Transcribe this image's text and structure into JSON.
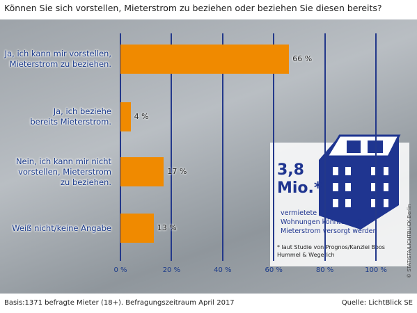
{
  "chart_data": {
    "type": "bar",
    "orientation": "horizontal",
    "title": "Können Sie sich vorstellen, Mieterstrom zu beziehen oder beziehen Sie diesen bereits?",
    "categories": [
      "Ja, ich kann mir vorstellen,\nMieterstrom zu beziehen.",
      "Ja, ich beziehe\nbereits Mieterstrom.",
      "Nein, ich kann mir nicht\nvorstellen, Mieterstrom\nzu beziehen.",
      "Weiß nicht/keine Angabe"
    ],
    "values": [
      66,
      4,
      17,
      13
    ],
    "value_labels": [
      "66 %",
      "4 %",
      "17 %",
      "13 %"
    ],
    "color": "#f08a00",
    "xlim": [
      0,
      100
    ],
    "xticks": [
      {
        "value": 0,
        "label": "0 %"
      },
      {
        "value": 20,
        "label": "20 %"
      },
      {
        "value": 40,
        "label": "40 %"
      },
      {
        "value": 60,
        "label": "60 %"
      },
      {
        "value": 80,
        "label": "80 %"
      },
      {
        "value": 100,
        "label": "100 %"
      }
    ],
    "grid": true,
    "annotation": {
      "headline": "3,8\nMio.*",
      "text": "vermietete\nWohnungen könnten  mit\nMieterstrom versorgt werden",
      "footnote": "* laut Studie von Prognos/Kanzlei Boos\nHummel & Wegerich"
    },
    "footer_left": "Basis:1371 befragte Mieter (18+). Befragungszeitraum April 2017",
    "footer_right": "Quelle: LichtBlick SE",
    "credit": "© STATISTA/LICHTBLICK Berlin"
  }
}
